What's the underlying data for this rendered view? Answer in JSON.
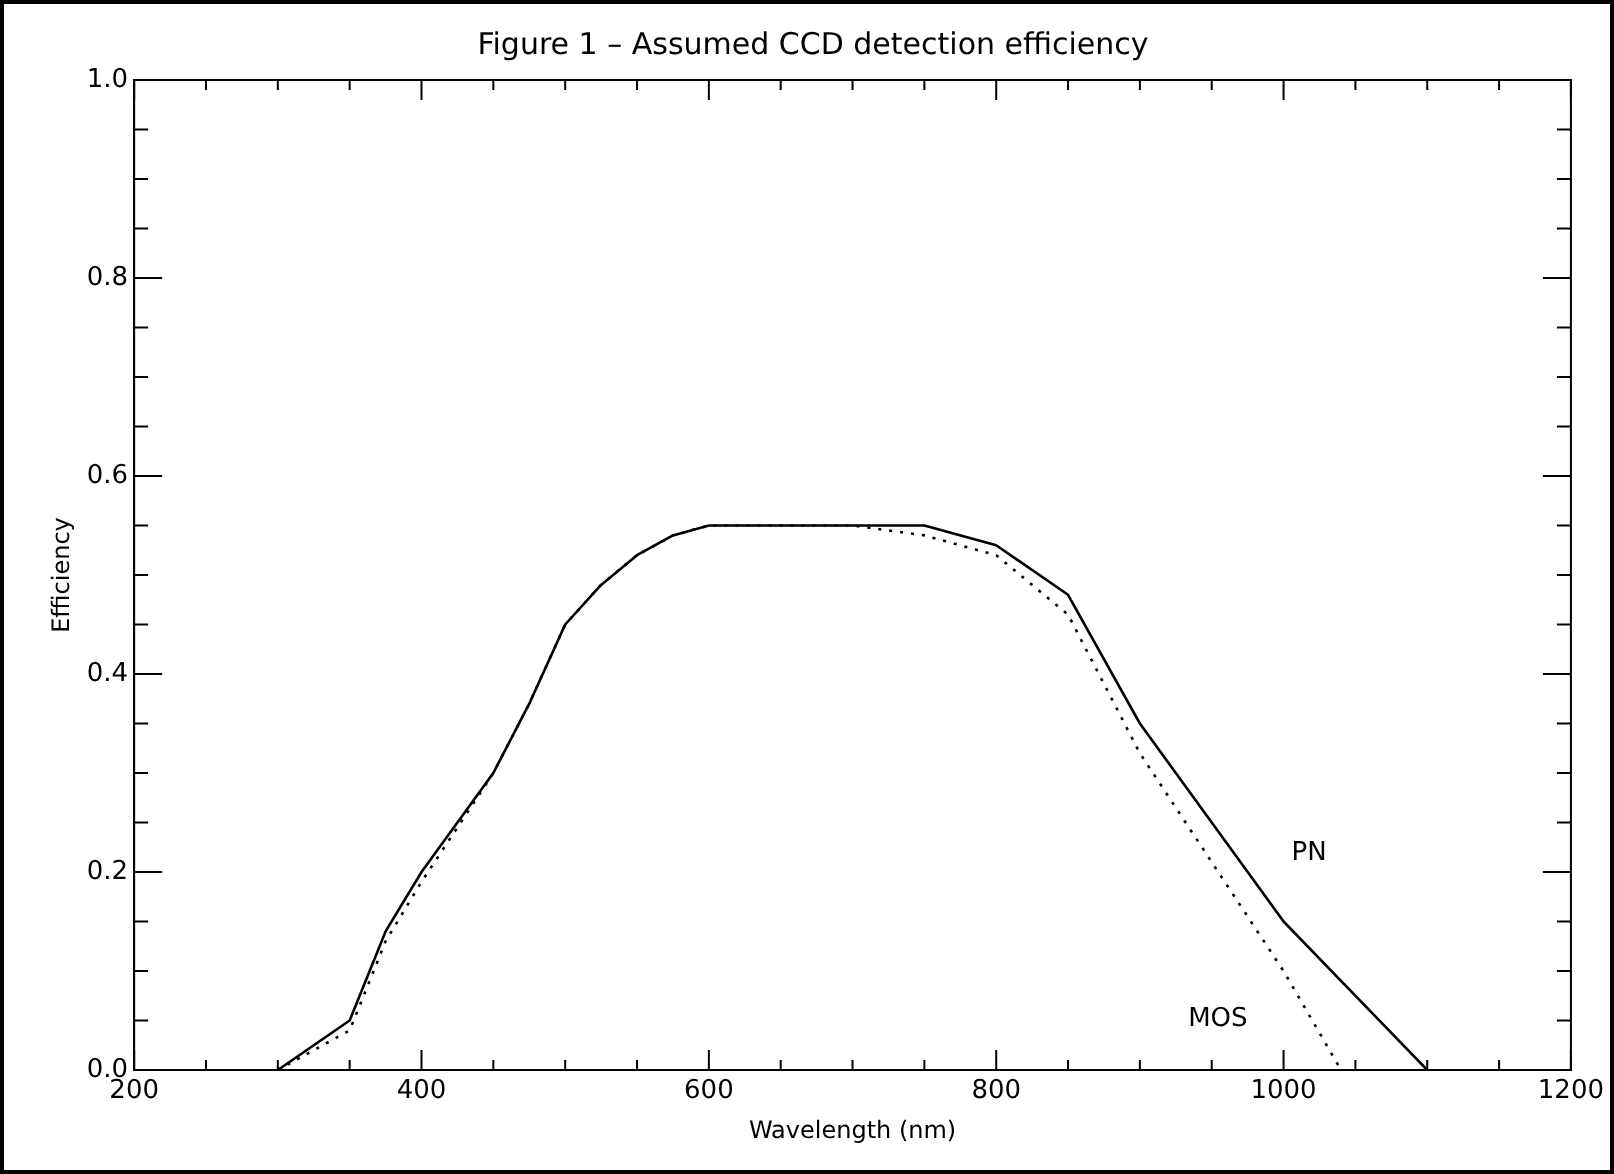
{
  "chart_data": {
    "type": "line",
    "title": "Figure 1 – Assumed CCD detection efficiency",
    "xlabel": "Wavelength (nm)",
    "ylabel": "Efficiency",
    "xlim": [
      200,
      1200
    ],
    "ylim": [
      0,
      1
    ],
    "xticks": [
      200,
      {
        "value": 250,
        "label": null
      },
      400,
      {
        "value": 450,
        "label": null
      },
      {
        "value": 300,
        "label": null
      },
      {
        "value": 350,
        "label": null
      },
      {
        "value": 500,
        "label": null
      },
      {
        "value": 550,
        "label": null
      },
      600,
      {
        "value": 650,
        "label": null
      },
      {
        "value": 700,
        "label": null
      },
      {
        "value": 750,
        "label": null
      },
      800,
      {
        "value": 850,
        "label": null
      },
      {
        "value": 900,
        "label": null
      },
      {
        "value": 950,
        "label": null
      },
      1000,
      {
        "value": 1050,
        "label": null
      },
      {
        "value": 1100,
        "label": null
      },
      {
        "value": 1150,
        "label": null
      },
      1200
    ],
    "yticks": [
      {
        "value": 0,
        "label": "0.0"
      },
      {
        "value": 0.05,
        "label": null
      },
      {
        "value": 0.1,
        "label": null
      },
      {
        "value": 0.15,
        "label": null
      },
      {
        "value": 0.2,
        "label": "0.2"
      },
      {
        "value": 0.25,
        "label": null
      },
      {
        "value": 0.3,
        "label": null
      },
      {
        "value": 0.35,
        "label": null
      },
      {
        "value": 0.4,
        "label": "0.4"
      },
      {
        "value": 0.45,
        "label": null
      },
      {
        "value": 0.5,
        "label": null
      },
      {
        "value": 0.55,
        "label": null
      },
      {
        "value": 0.6,
        "label": "0.6"
      },
      {
        "value": 0.65,
        "label": null
      },
      {
        "value": 0.7,
        "label": null
      },
      {
        "value": 0.75,
        "label": null
      },
      {
        "value": 0.8,
        "label": "0.8"
      },
      {
        "value": 0.85,
        "label": null
      },
      {
        "value": 0.9,
        "label": null
      },
      {
        "value": 0.95,
        "label": null
      },
      {
        "value": 1,
        "label": "1.0"
      }
    ],
    "grid": false,
    "legend": false,
    "marker": "none",
    "series": [
      {
        "name": "PN",
        "color": "#000000",
        "line_style": "solid",
        "x": [
          300,
          350,
          375,
          400,
          450,
          475,
          500,
          525,
          550,
          575,
          600,
          750,
          800,
          850,
          900,
          1000,
          1100
        ],
        "values": [
          0,
          0.05,
          0.14,
          0.2,
          0.3,
          0.37,
          0.45,
          0.49,
          0.52,
          0.54,
          0.55,
          0.55,
          0.53,
          0.48,
          0.35,
          0.15,
          0
        ]
      },
      {
        "name": "MOS",
        "color": "#000000",
        "line_style": "dotted",
        "x": [
          300,
          350,
          375,
          400,
          450,
          475,
          500,
          525,
          550,
          575,
          600,
          700,
          750,
          800,
          850,
          900,
          1000,
          1040
        ],
        "values": [
          0,
          0.04,
          0.13,
          0.19,
          0.3,
          0.37,
          0.45,
          0.49,
          0.52,
          0.54,
          0.55,
          0.55,
          0.54,
          0.52,
          0.46,
          0.32,
          0.1,
          0
        ]
      }
    ]
  }
}
